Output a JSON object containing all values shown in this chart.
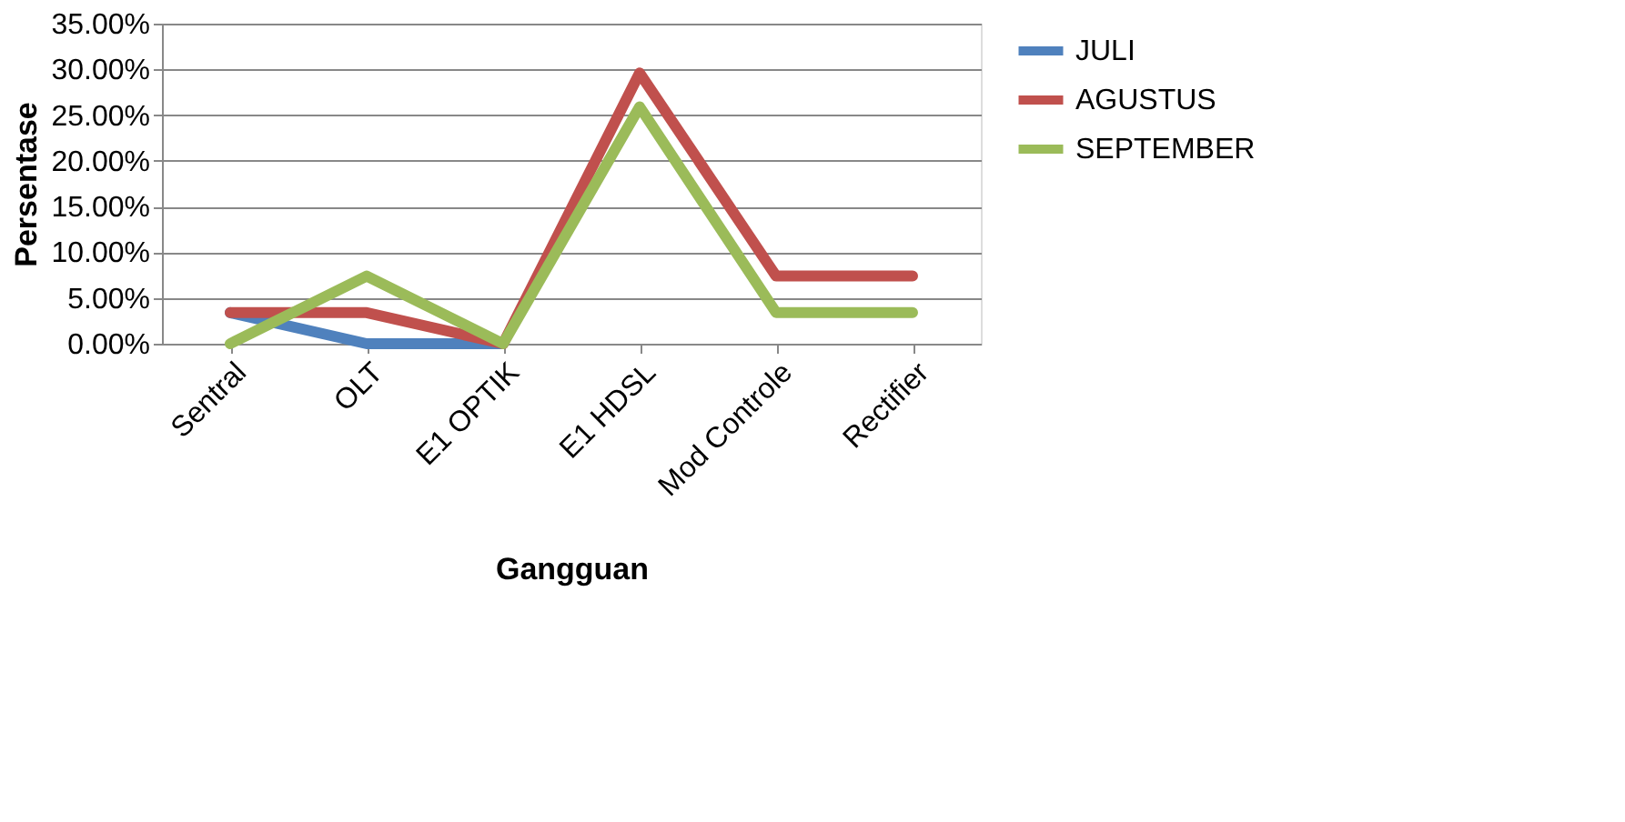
{
  "chart_data": {
    "type": "line",
    "xlabel": "Gangguan",
    "ylabel": "Persentase",
    "categories": [
      "Sentral",
      "OLT",
      "E1 OPTIK",
      "E1 HDSL",
      "Mod Controle",
      "Rectifier"
    ],
    "series": [
      {
        "name": "JULI",
        "color": "#4f81bd",
        "values": [
          3.4,
          0,
          0,
          null,
          null,
          null
        ]
      },
      {
        "name": "AGUSTUS",
        "color": "#c0504d",
        "values": [
          3.4,
          3.4,
          0,
          29.6,
          7.4,
          7.4
        ]
      },
      {
        "name": "SEPTEMBER",
        "color": "#9bbb59",
        "values": [
          0,
          7.4,
          0,
          25.9,
          3.4,
          3.4
        ]
      }
    ],
    "ylim": [
      0,
      35
    ],
    "yticks": [
      {
        "value": 0,
        "label": "0.00%"
      },
      {
        "value": 5,
        "label": "5.00%"
      },
      {
        "value": 10,
        "label": "10.00%"
      },
      {
        "value": 15,
        "label": "15.00%"
      },
      {
        "value": 20,
        "label": "20.00%"
      },
      {
        "value": 25,
        "label": "25.00%"
      },
      {
        "value": 30,
        "label": "30.00%"
      },
      {
        "value": 35,
        "label": "35.00%"
      }
    ],
    "grid": "y",
    "legend": "right",
    "marker": "none",
    "line_style": "solid"
  }
}
